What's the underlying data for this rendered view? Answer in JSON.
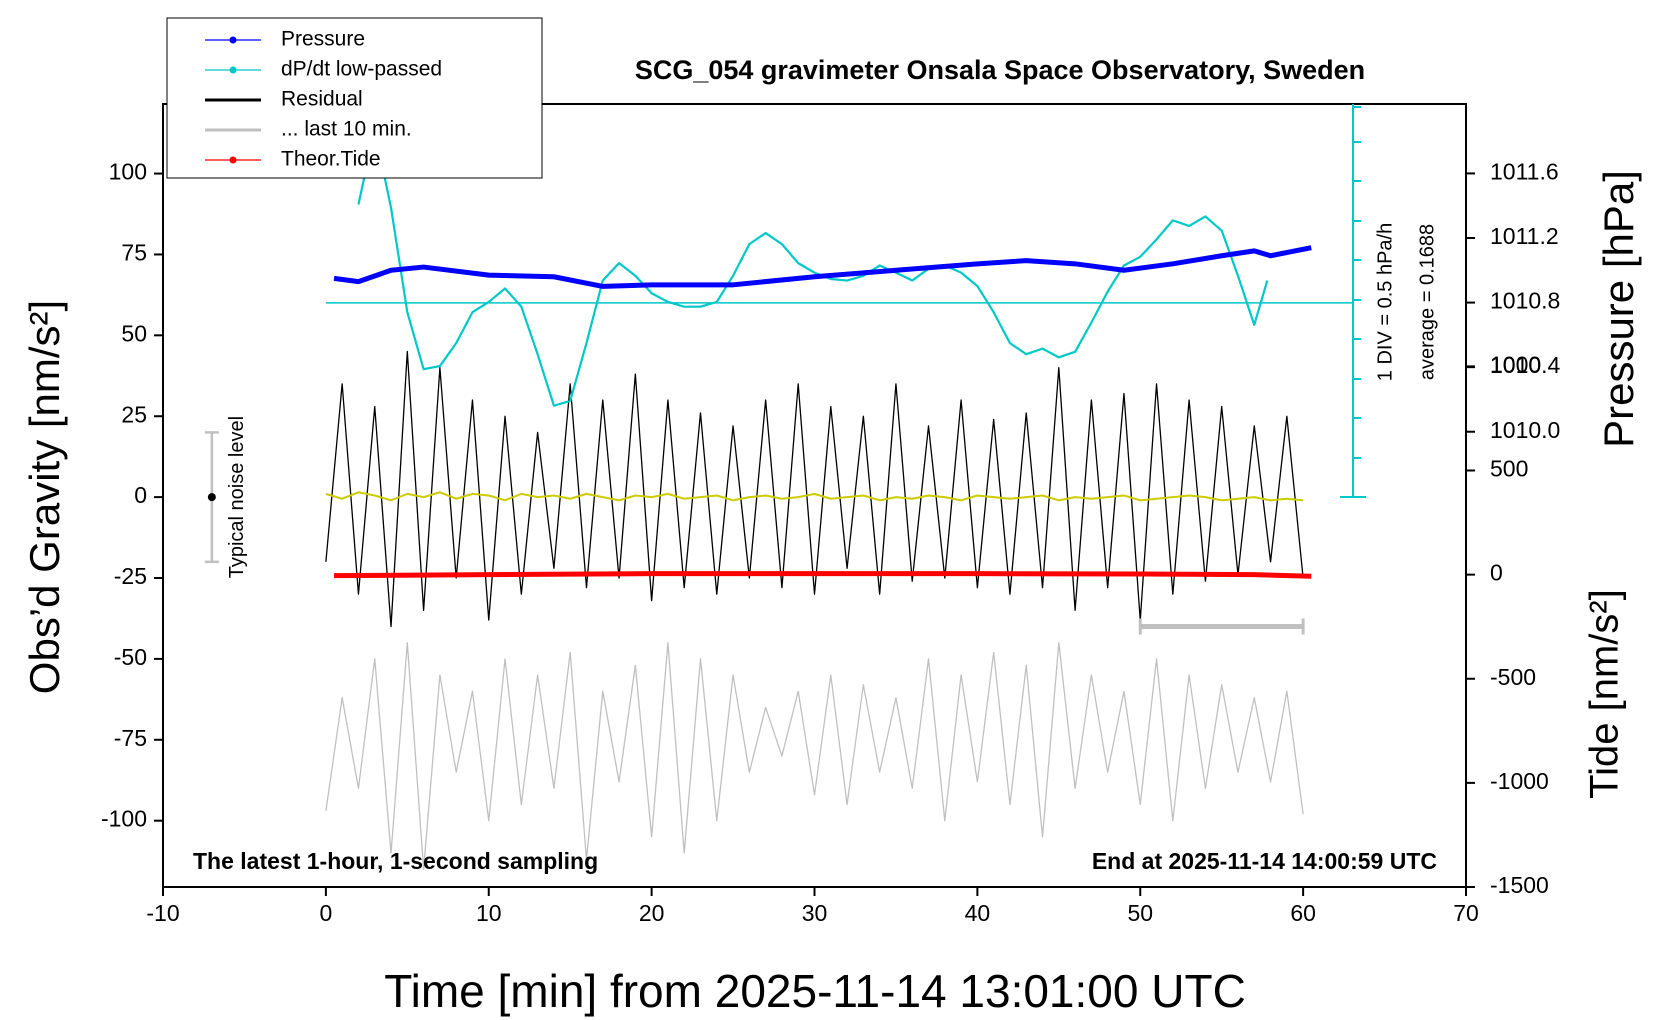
{
  "chart_data": {
    "type": "line",
    "title": "SCG_054 gravimeter Onsala Space Observatory, Sweden",
    "x_label": "Time [min] from 2025-11-14 13:01:00 UTC",
    "y_label": "Obs’d Gravity [nm/s²]",
    "y2_label": "Pressure [hPa]",
    "y3_label": "Tide [nm/s²]",
    "annotations": [
      "The latest 1-hour, 1-second sampling",
      "End at 2025-11-14 14:00:59 UTC",
      "1 DIV = 0.5 hPa/h",
      "average = 0.1688"
    ],
    "xlim": [
      -10,
      70
    ],
    "xticks": [
      -10,
      0,
      10,
      20,
      30,
      40,
      50,
      60,
      70
    ],
    "ylim": [
      -120.5,
      121.5
    ],
    "yticks": [
      -100,
      -75,
      -50,
      -25,
      0,
      25,
      50,
      75,
      100
    ],
    "y2lim": [
      1007.18,
      1012.03
    ],
    "y2ticks": [
      {
        "value": 1010,
        "label": "1010.0"
      },
      1010.4,
      1010.8,
      1011.2,
      1011.6
    ],
    "y3lim": [
      -1500,
      2260
    ],
    "y3ticks": [
      -1500,
      -1000,
      -500,
      0,
      500,
      1000
    ],
    "y4lim": [
      -7.21,
      2.68
    ],
    "x": [
      0,
      1,
      2,
      3,
      4,
      5,
      6,
      7,
      8,
      9,
      10,
      11,
      12,
      13,
      14,
      15,
      16,
      17,
      18,
      19,
      20,
      21,
      22,
      23,
      24,
      25,
      26,
      27,
      28,
      29,
      30,
      31,
      32,
      33,
      34,
      35,
      36,
      37,
      38,
      39,
      40,
      41,
      42,
      43,
      44,
      45,
      46,
      47,
      48,
      49,
      50,
      51,
      52,
      53,
      54,
      55,
      56,
      57,
      58,
      59,
      60
    ],
    "series": [
      {
        "name": "Pressure",
        "color": "#0000ff",
        "axis": "y2",
        "marker": true,
        "x": [
          0.5,
          2,
          4,
          6,
          10,
          14,
          17,
          20,
          25,
          30,
          35,
          40,
          43,
          46,
          49,
          52,
          55,
          57,
          58,
          60.5
        ],
        "values": [
          1010.95,
          1010.93,
          1011.0,
          1011.02,
          1010.97,
          1010.96,
          1010.9,
          1010.91,
          1010.91,
          1010.96,
          1011.0,
          1011.04,
          1011.06,
          1011.04,
          1011.0,
          1011.04,
          1011.09,
          1011.12,
          1011.09,
          1011.14
        ]
      },
      {
        "name": "dP/dt low-passed",
        "color": "#00c8c8",
        "axis": "y4",
        "marker": true,
        "reference": 0.1688,
        "x": [
          2,
          2.5,
          3,
          4,
          5,
          6,
          7,
          8,
          9,
          10,
          11,
          12,
          13,
          14,
          15,
          16,
          17,
          18,
          19,
          20,
          21,
          22,
          23,
          24,
          25,
          26,
          27,
          28,
          29,
          30,
          31,
          32,
          33,
          34,
          35,
          36,
          37,
          38,
          39,
          40,
          41,
          42,
          43,
          44,
          45,
          46,
          47,
          48,
          49,
          50,
          51,
          52,
          53,
          54,
          55,
          56,
          57,
          57.8
        ],
        "values": [
          1.41,
          1.89,
          2.35,
          1.37,
          0.05,
          -0.67,
          -0.63,
          -0.34,
          0.05,
          0.18,
          0.35,
          0.12,
          -0.48,
          -1.13,
          -1.07,
          -0.34,
          0.45,
          0.67,
          0.51,
          0.29,
          0.18,
          0.12,
          0.12,
          0.18,
          0.51,
          0.91,
          1.05,
          0.91,
          0.67,
          0.55,
          0.47,
          0.45,
          0.51,
          0.64,
          0.55,
          0.45,
          0.6,
          0.64,
          0.55,
          0.38,
          0.05,
          -0.34,
          -0.48,
          -0.41,
          -0.52,
          -0.45,
          -0.08,
          0.31,
          0.64,
          0.75,
          0.97,
          1.21,
          1.14,
          1.26,
          1.08,
          0.51,
          -0.11,
          0.45
        ]
      },
      {
        "name": "Residual",
        "color": "#000000",
        "axis": "y",
        "values": [
          -20,
          35,
          -30,
          28,
          -40,
          45,
          -35,
          40,
          -25,
          30,
          -38,
          25,
          -30,
          20,
          -22,
          35,
          -28,
          30,
          -25,
          38,
          -32,
          30,
          -28,
          26,
          -30,
          22,
          -25,
          30,
          -28,
          35,
          -30,
          28,
          -22,
          25,
          -30,
          35,
          -26,
          22,
          -25,
          30,
          -28,
          24,
          -30,
          26,
          -28,
          40,
          -35,
          30,
          -28,
          32,
          -38,
          35,
          -30,
          30,
          -26,
          28,
          -24,
          22,
          -20,
          25,
          -25
        ]
      },
      {
        "name": "... last 10 min.",
        "color": "#c0c0c0",
        "axis": "y",
        "values": [
          -97,
          -62,
          -90,
          -50,
          -110,
          -45,
          -115,
          -55,
          -85,
          -60,
          -100,
          -50,
          -95,
          -55,
          -90,
          -48,
          -112,
          -60,
          -88,
          -52,
          -105,
          -45,
          -110,
          -50,
          -100,
          -55,
          -85,
          -65,
          -80,
          -60,
          -92,
          -55,
          -95,
          -58,
          -85,
          -62,
          -90,
          -50,
          -100,
          -55,
          -88,
          -48,
          -95,
          -52,
          -105,
          -45,
          -90,
          -55,
          -85,
          -60,
          -95,
          -50,
          -100,
          -55,
          -90,
          -58,
          -85,
          -62,
          -88,
          -60,
          -98
        ]
      },
      {
        "name": "Theor.Tide",
        "color": "#ff0000",
        "axis": "y3",
        "marker": true,
        "x": [
          0.5,
          10,
          20,
          30,
          40,
          50,
          57,
          60.5
        ],
        "values": [
          -5,
          0,
          5,
          5,
          5,
          3,
          0,
          -8
        ]
      }
    ],
    "residual_smoothed": {
      "color": "#cccc00",
      "values": [
        1,
        -0.5,
        1.5,
        0.5,
        -1,
        1,
        0,
        1.5,
        -0.5,
        1,
        0.5,
        -1,
        1,
        0,
        0.5,
        -0.5,
        1,
        0,
        -1,
        0.5,
        0,
        1,
        -0.5,
        0,
        0.5,
        -1,
        0,
        0.5,
        -0.5,
        0,
        1,
        -0.5,
        0,
        0.5,
        -1,
        0,
        -0.5,
        0.5,
        0,
        -1,
        0.5,
        0,
        -0.5,
        0,
        0.5,
        -1,
        0,
        -0.5,
        0,
        0.5,
        -1,
        -0.5,
        0,
        0.5,
        0,
        -1,
        -0.5,
        0,
        -1,
        -0.5,
        -1
      ]
    },
    "noise_bar": {
      "x": -7,
      "low": -20,
      "high": 20,
      "center": 0,
      "label": "Typical noise level",
      "color": "#c0c0c0"
    },
    "last10_bar": {
      "x": [
        50,
        60
      ],
      "y": -40,
      "color": "#c0c0c0"
    }
  }
}
